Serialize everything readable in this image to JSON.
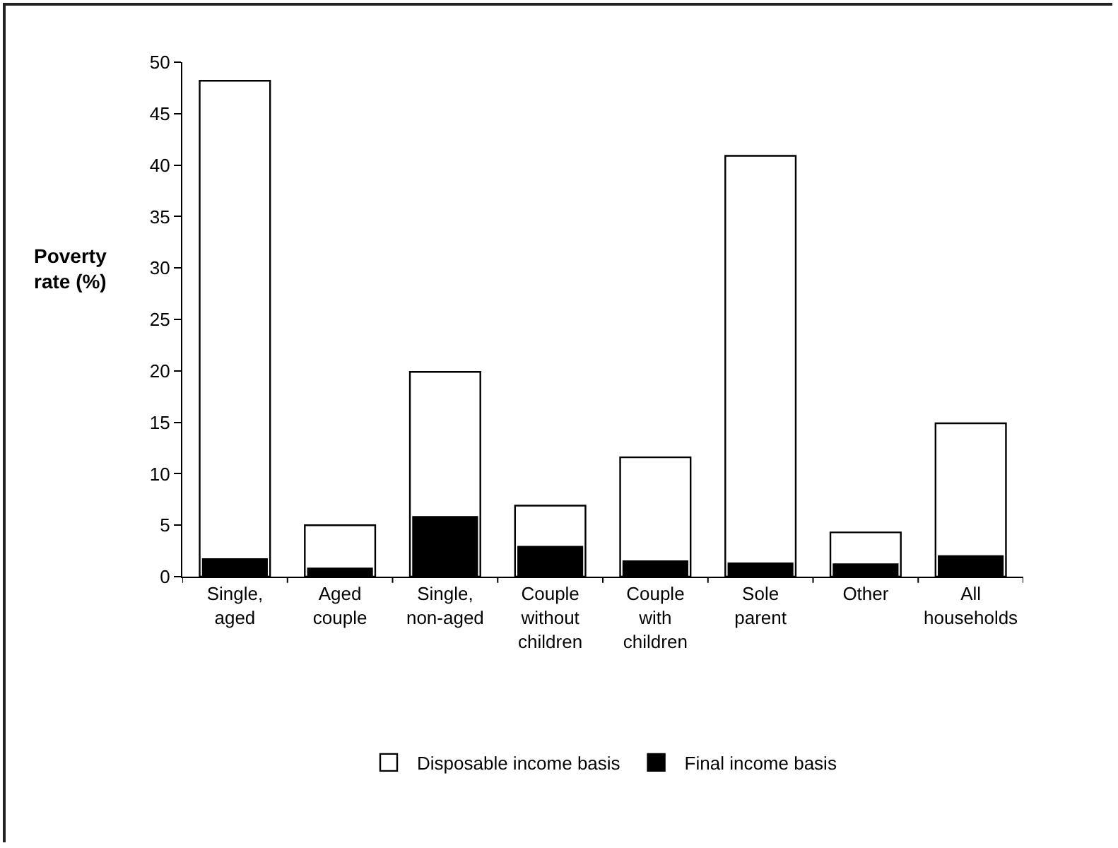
{
  "chart_data": {
    "type": "bar",
    "ylabel": "Poverty rate (%)",
    "categories": [
      "Single, aged",
      "Aged couple",
      "Single, non-aged",
      "Couple without children",
      "Couple with children",
      "Sole parent",
      "Other",
      "All households"
    ],
    "series": [
      {
        "name": "Disposable income basis",
        "color": "#ffffff",
        "values": [
          48.2,
          5.0,
          19.9,
          6.9,
          11.6,
          40.9,
          4.3,
          14.9
        ]
      },
      {
        "name": "Final income basis",
        "color": "#000000",
        "values": [
          1.7,
          0.8,
          5.8,
          2.9,
          1.5,
          1.3,
          1.2,
          2.0
        ]
      }
    ],
    "ylim": [
      0,
      50
    ],
    "yticks": [
      0,
      5,
      10,
      15,
      20,
      25,
      30,
      35,
      40,
      45,
      50
    ],
    "grid": false,
    "legend": "bottom"
  }
}
